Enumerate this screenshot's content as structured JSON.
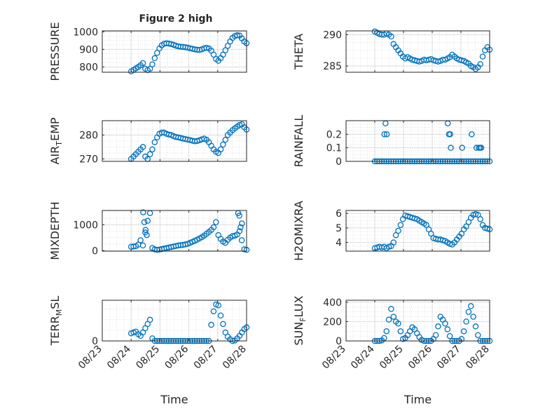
{
  "figure_title": "Figure 2 high",
  "colors": {
    "marker": "#0072BD",
    "axes": "#262626",
    "grid": "#DCDCDC",
    "background": "#FFFFFF"
  },
  "chart_data": [
    {
      "type": "scatter",
      "name": "PRESSURE",
      "ylabel": "PRESSURE",
      "xlabel": "",
      "ylim": [
        770,
        1005
      ],
      "yticks": [
        800,
        900,
        1000
      ],
      "xlim": [
        "08/23",
        "08/28"
      ],
      "xtick_labels": [],
      "grid": true,
      "marker": "circle-open",
      "x": [
        "08/24 00:00",
        "08/24 01:58",
        "08/24 03:55",
        "08/24 05:53",
        "08/24 07:50",
        "08/24 09:48",
        "08/24 11:46",
        "08/24 13:43",
        "08/24 15:41",
        "08/24 17:38",
        "08/24 19:36",
        "08/24 21:34",
        "08/24 23:31",
        "08/25 01:29",
        "08/25 03:26",
        "08/25 05:24",
        "08/25 07:22",
        "08/25 09:19",
        "08/25 11:17",
        "08/25 13:14",
        "08/25 15:12",
        "08/25 17:10",
        "08/25 19:07",
        "08/25 21:05",
        "08/25 23:02",
        "08/26 01:00",
        "08/26 02:58",
        "08/26 04:55",
        "08/26 06:53",
        "08/26 08:50",
        "08/26 10:48",
        "08/26 12:46",
        "08/26 14:43",
        "08/26 16:41",
        "08/26 18:38",
        "08/26 20:36",
        "08/26 22:34",
        "08/27 00:31",
        "08/27 02:29",
        "08/27 04:26",
        "08/27 06:24",
        "08/27 08:22",
        "08/27 10:19",
        "08/27 12:17",
        "08/27 14:14",
        "08/27 16:12",
        "08/27 18:10",
        "08/27 20:07",
        "08/27 22:05",
        "08/28 00:00"
      ],
      "y": [
        775,
        783,
        792,
        800,
        810,
        822,
        790,
        782,
        790,
        815,
        850,
        880,
        905,
        923,
        932,
        935,
        933,
        930,
        926,
        921,
        917,
        915,
        914,
        912,
        910,
        906,
        903,
        900,
        898,
        897,
        900,
        906,
        909,
        905,
        893,
        870,
        845,
        835,
        850,
        870,
        895,
        920,
        945,
        965,
        975,
        980,
        978,
        962,
        945,
        935
      ]
    },
    {
      "type": "scatter",
      "name": "THETA",
      "ylabel": "THETA",
      "xlabel": "",
      "ylim": [
        284,
        290.6
      ],
      "yticks": [
        285,
        290
      ],
      "xlim": [
        "08/23",
        "08/28"
      ],
      "xtick_labels": [],
      "grid": true,
      "marker": "circle-open",
      "x": [
        "08/24 00:00",
        "08/24 01:58",
        "08/24 03:55",
        "08/24 05:53",
        "08/24 07:50",
        "08/24 09:48",
        "08/24 11:46",
        "08/24 13:43",
        "08/24 15:41",
        "08/24 17:38",
        "08/24 19:36",
        "08/24 21:34",
        "08/24 23:31",
        "08/25 01:29",
        "08/25 03:26",
        "08/25 05:24",
        "08/25 07:22",
        "08/25 09:19",
        "08/25 11:17",
        "08/25 13:14",
        "08/25 15:12",
        "08/25 17:10",
        "08/25 19:07",
        "08/25 21:05",
        "08/25 23:02",
        "08/26 01:00",
        "08/26 02:58",
        "08/26 04:55",
        "08/26 06:53",
        "08/26 08:50",
        "08/26 10:48",
        "08/26 12:46",
        "08/26 14:43",
        "08/26 16:41",
        "08/26 18:38",
        "08/26 20:36",
        "08/26 22:34",
        "08/27 00:31",
        "08/27 02:29",
        "08/27 04:26",
        "08/27 06:24",
        "08/27 08:22",
        "08/27 10:19",
        "08/27 12:17",
        "08/27 14:14",
        "08/27 16:12",
        "08/27 18:10",
        "08/27 20:07",
        "08/27 22:05",
        "08/28 00:00"
      ],
      "y": [
        290.5,
        290.3,
        290.1,
        290.0,
        290.0,
        290.2,
        290.0,
        289.7,
        288.5,
        288.0,
        287.5,
        287.0,
        286.5,
        286.2,
        286.4,
        286.2,
        286.0,
        285.9,
        285.8,
        285.7,
        285.8,
        286.0,
        285.9,
        286.0,
        286.1,
        285.9,
        285.8,
        285.7,
        285.8,
        286.0,
        286.0,
        286.2,
        286.4,
        286.8,
        286.5,
        286.2,
        286.0,
        285.9,
        285.8,
        285.6,
        285.4,
        285.0,
        284.8,
        284.5,
        284.8,
        285.3,
        286.5,
        287.5,
        288.0,
        287.6
      ]
    },
    {
      "type": "scatter",
      "name": "AIR_TEMP",
      "ylabel": "AIR_TEMP",
      "xlabel": "",
      "ylim": [
        269,
        286
      ],
      "yticks": [
        270,
        280
      ],
      "xlim": [
        "08/23",
        "08/28"
      ],
      "xtick_labels": [],
      "grid": true,
      "marker": "circle-open",
      "x": [
        "08/24 00:00",
        "08/24 01:58",
        "08/24 03:55",
        "08/24 05:53",
        "08/24 07:50",
        "08/24 09:48",
        "08/24 11:46",
        "08/24 13:43",
        "08/24 15:41",
        "08/24 17:38",
        "08/24 19:36",
        "08/24 21:34",
        "08/24 23:31",
        "08/25 01:29",
        "08/25 03:26",
        "08/25 05:24",
        "08/25 07:22",
        "08/25 09:19",
        "08/25 11:17",
        "08/25 13:14",
        "08/25 15:12",
        "08/25 17:10",
        "08/25 19:07",
        "08/25 21:05",
        "08/25 23:02",
        "08/26 01:00",
        "08/26 02:58",
        "08/26 04:55",
        "08/26 06:53",
        "08/26 08:50",
        "08/26 10:48",
        "08/26 12:46",
        "08/26 14:43",
        "08/26 16:41",
        "08/26 18:38",
        "08/26 20:36",
        "08/26 22:34",
        "08/27 00:31",
        "08/27 02:29",
        "08/27 04:26",
        "08/27 06:24",
        "08/27 08:22",
        "08/27 10:19",
        "08/27 12:17",
        "08/27 14:14",
        "08/27 16:12",
        "08/27 18:10",
        "08/27 20:07",
        "08/27 22:05",
        "08/28 00:00"
      ],
      "y": [
        270,
        271,
        272,
        273,
        274,
        275,
        271,
        270,
        272,
        274,
        277,
        279,
        280.5,
        281,
        281,
        280.5,
        280.2,
        280,
        279.5,
        279.2,
        279,
        278.8,
        278.5,
        278.3,
        278.1,
        277.9,
        277.6,
        277.4,
        277.5,
        277.8,
        278.2,
        278.5,
        278,
        277,
        275.5,
        274,
        273,
        272.5,
        274,
        276,
        278,
        280,
        281,
        282,
        282.8,
        283.5,
        284.2,
        284.5,
        283.2,
        282.3
      ]
    },
    {
      "type": "scatter",
      "name": "RAINFALL",
      "ylabel": "RAINFALL",
      "xlabel": "",
      "ylim": [
        0,
        0.3
      ],
      "yticks": [
        0,
        0.1,
        0.2
      ],
      "xlim": [
        "08/23",
        "08/28"
      ],
      "xtick_labels": [],
      "grid": true,
      "marker": "circle-open",
      "x": [
        "08/24 00:00",
        "08/24 01:58",
        "08/24 03:55",
        "08/24 05:53",
        "08/24 07:50",
        "08/24 09:48",
        "08/24 11:46",
        "08/24 13:43",
        "08/24 15:41",
        "08/24 17:38",
        "08/24 19:36",
        "08/24 21:34",
        "08/24 23:31",
        "08/25 01:29",
        "08/25 03:26",
        "08/25 05:24",
        "08/25 07:22",
        "08/25 09:19",
        "08/25 11:17",
        "08/25 13:14",
        "08/25 15:12",
        "08/25 17:10",
        "08/25 19:07",
        "08/25 21:05",
        "08/25 23:02",
        "08/26 01:00",
        "08/26 02:58",
        "08/26 04:55",
        "08/26 06:53",
        "08/26 08:50",
        "08/26 10:48",
        "08/26 12:46",
        "08/26 14:43",
        "08/26 16:41",
        "08/26 18:38",
        "08/26 20:36",
        "08/26 22:34",
        "08/27 00:31",
        "08/27 02:29",
        "08/27 04:26",
        "08/27 06:24",
        "08/27 08:22",
        "08/27 10:19",
        "08/27 12:17",
        "08/27 14:14",
        "08/27 16:12",
        "08/27 18:10",
        "08/27 20:07",
        "08/27 22:05",
        "08/28 00:00",
        "08/24 08:00",
        "08/24 09:00",
        "08/24 10:00",
        "08/26 13:00",
        "08/26 14:00",
        "08/26 15:00",
        "08/26 15:30",
        "08/27 01:00",
        "08/27 09:00",
        "08/27 13:00",
        "08/27 15:00",
        "08/27 16:00",
        "08/27 17:00"
      ],
      "y": [
        0,
        0,
        0,
        0,
        0,
        0,
        0,
        0,
        0,
        0,
        0,
        0,
        0,
        0,
        0,
        0,
        0,
        0,
        0,
        0,
        0,
        0,
        0,
        0,
        0,
        0,
        0,
        0,
        0,
        0,
        0,
        0,
        0,
        0,
        0,
        0,
        0,
        0,
        0,
        0,
        0,
        0,
        0,
        0,
        0,
        0,
        0,
        0,
        0,
        0,
        0.2,
        0.28,
        0.2,
        0.28,
        0.2,
        0.2,
        0.1,
        0.1,
        0.2,
        0.1,
        0.1,
        0.1,
        0.1
      ]
    },
    {
      "type": "scatter",
      "name": "MIXDEPTH",
      "ylabel": "MIXDEPTH",
      "xlabel": "",
      "ylim": [
        -20,
        1550
      ],
      "yticks": [
        0,
        1000
      ],
      "xlim": [
        "08/23",
        "08/28"
      ],
      "xtick_labels": [],
      "grid": true,
      "marker": "circle-open",
      "x": [
        "08/24 00:00",
        "08/24 01:58",
        "08/24 03:55",
        "08/24 05:53",
        "08/24 07:50",
        "08/24 09:48",
        "08/24 11:46",
        "08/24 13:43",
        "08/24 15:41",
        "08/24 17:38",
        "08/24 19:36",
        "08/24 21:34",
        "08/24 23:31",
        "08/25 01:29",
        "08/25 03:26",
        "08/25 05:24",
        "08/25 07:22",
        "08/25 09:19",
        "08/25 11:17",
        "08/25 13:14",
        "08/25 15:12",
        "08/25 17:10",
        "08/25 19:07",
        "08/25 21:05",
        "08/25 23:02",
        "08/26 01:00",
        "08/26 02:58",
        "08/26 04:55",
        "08/26 06:53",
        "08/26 08:50",
        "08/26 10:48",
        "08/26 12:46",
        "08/26 14:43",
        "08/26 16:41",
        "08/26 18:38",
        "08/26 20:36",
        "08/26 22:34",
        "08/27 00:31",
        "08/27 02:29",
        "08/27 04:26",
        "08/27 06:24",
        "08/27 08:22",
        "08/27 10:19",
        "08/27 12:17",
        "08/27 14:14",
        "08/27 16:12",
        "08/27 18:10",
        "08/27 20:07",
        "08/27 22:05",
        "08/28 00:00",
        "08/24 10:00",
        "08/24 11:00",
        "08/24 12:00",
        "08/24 13:00",
        "08/27 17:00",
        "08/27 18:00",
        "08/27 19:00",
        "08/27 20:00"
      ],
      "y": [
        150,
        160,
        170,
        230,
        400,
        200,
        700,
        1150,
        1450,
        100,
        50,
        30,
        40,
        60,
        80,
        100,
        120,
        140,
        160,
        180,
        200,
        210,
        220,
        240,
        260,
        300,
        340,
        380,
        420,
        470,
        520,
        580,
        650,
        720,
        800,
        900,
        1100,
        600,
        450,
        350,
        300,
        420,
        500,
        560,
        580,
        620,
        750,
        1050,
        50,
        30,
        1480,
        1100,
        800,
        600,
        1450,
        1350,
        900,
        400
      ]
    },
    {
      "type": "scatter",
      "name": "H2OMIXRA",
      "ylabel": "H2OMIXRA",
      "xlabel": "",
      "ylim": [
        3.4,
        6.2
      ],
      "yticks": [
        4,
        5,
        6
      ],
      "xlim": [
        "08/23",
        "08/28"
      ],
      "xtick_labels": [],
      "grid": true,
      "marker": "circle-open",
      "x": [
        "08/24 00:00",
        "08/24 01:58",
        "08/24 03:55",
        "08/24 05:53",
        "08/24 07:50",
        "08/24 09:48",
        "08/24 11:46",
        "08/24 13:43",
        "08/24 15:41",
        "08/24 17:38",
        "08/24 19:36",
        "08/24 21:34",
        "08/24 23:31",
        "08/25 01:29",
        "08/25 03:26",
        "08/25 05:24",
        "08/25 07:22",
        "08/25 09:19",
        "08/25 11:17",
        "08/25 13:14",
        "08/25 15:12",
        "08/25 17:10",
        "08/25 19:07",
        "08/25 21:05",
        "08/25 23:02",
        "08/26 01:00",
        "08/26 02:58",
        "08/26 04:55",
        "08/26 06:53",
        "08/26 08:50",
        "08/26 10:48",
        "08/26 12:46",
        "08/26 14:43",
        "08/26 16:41",
        "08/26 18:38",
        "08/26 20:36",
        "08/26 22:34",
        "08/27 00:31",
        "08/27 02:29",
        "08/27 04:26",
        "08/27 06:24",
        "08/27 08:22",
        "08/27 10:19",
        "08/27 12:17",
        "08/27 14:14",
        "08/27 16:12",
        "08/27 18:10",
        "08/27 20:07",
        "08/27 22:05",
        "08/28 00:00"
      ],
      "y": [
        3.6,
        3.65,
        3.7,
        3.65,
        3.7,
        3.6,
        3.7,
        3.75,
        4.0,
        4.5,
        4.8,
        5.2,
        5.6,
        5.85,
        5.8,
        5.75,
        5.7,
        5.65,
        5.6,
        5.5,
        5.4,
        5.3,
        5.2,
        4.9,
        4.6,
        4.3,
        4.25,
        4.2,
        4.2,
        4.15,
        4.1,
        4.0,
        3.9,
        3.85,
        4.0,
        4.2,
        4.4,
        4.6,
        4.9,
        5.1,
        5.4,
        5.7,
        5.9,
        5.95,
        5.9,
        5.6,
        5.2,
        5.0,
        4.95,
        4.9
      ]
    },
    {
      "type": "scatter",
      "name": "TERR_MSL",
      "ylabel": "TERR_MSL",
      "xlabel": "Time",
      "ylim": [
        0,
        480
      ],
      "yticks": [
        0,
        500
      ],
      "xlim": [
        "08/23",
        "08/28"
      ],
      "xtick_labels": [
        "08/23",
        "08/24",
        "08/25",
        "08/26",
        "08/27",
        "08/28"
      ],
      "grid": true,
      "marker": "circle-open",
      "x": [
        "08/24 00:00",
        "08/24 01:58",
        "08/24 03:55",
        "08/24 05:53",
        "08/24 07:50",
        "08/24 09:48",
        "08/24 11:46",
        "08/24 13:43",
        "08/24 15:41",
        "08/24 17:38",
        "08/24 19:36",
        "08/24 21:34",
        "08/24 23:31",
        "08/25 01:29",
        "08/25 03:26",
        "08/25 05:24",
        "08/25 07:22",
        "08/25 09:19",
        "08/25 11:17",
        "08/25 13:14",
        "08/25 15:12",
        "08/25 17:10",
        "08/25 19:07",
        "08/25 21:05",
        "08/25 23:02",
        "08/26 01:00",
        "08/26 02:58",
        "08/26 04:55",
        "08/26 06:53",
        "08/26 08:50",
        "08/26 10:48",
        "08/26 12:46",
        "08/26 14:43",
        "08/26 16:41",
        "08/26 18:38",
        "08/26 20:36",
        "08/26 22:34",
        "08/27 00:31",
        "08/27 02:29",
        "08/27 04:26",
        "08/27 06:24",
        "08/27 08:22",
        "08/27 10:19",
        "08/27 12:17",
        "08/27 14:14",
        "08/27 16:12",
        "08/27 18:10",
        "08/27 20:07",
        "08/27 22:05",
        "08/28 00:00"
      ],
      "y": [
        90,
        100,
        110,
        80,
        60,
        100,
        150,
        200,
        250,
        30,
        0,
        0,
        0,
        0,
        0,
        0,
        0,
        0,
        0,
        0,
        0,
        0,
        0,
        0,
        0,
        0,
        0,
        0,
        0,
        0,
        0,
        0,
        0,
        0,
        190,
        350,
        430,
        420,
        300,
        200,
        100,
        50,
        20,
        0,
        5,
        30,
        60,
        100,
        140,
        160
      ]
    },
    {
      "type": "scatter",
      "name": "SUN_FLUX",
      "ylabel": "SUN_FLUX",
      "xlabel": "Time",
      "ylim": [
        0,
        420
      ],
      "yticks": [
        0,
        200,
        400
      ],
      "xlim": [
        "08/23",
        "08/28"
      ],
      "xtick_labels": [
        "08/23",
        "08/24",
        "08/25",
        "08/26",
        "08/27",
        "08/28"
      ],
      "grid": true,
      "marker": "circle-open",
      "x": [
        "08/24 00:00",
        "08/24 01:58",
        "08/24 03:55",
        "08/24 05:53",
        "08/24 07:50",
        "08/24 09:48",
        "08/24 11:46",
        "08/24 13:43",
        "08/24 15:41",
        "08/24 17:38",
        "08/24 19:36",
        "08/24 21:34",
        "08/24 23:31",
        "08/25 01:29",
        "08/25 03:26",
        "08/25 05:24",
        "08/25 07:22",
        "08/25 09:19",
        "08/25 11:17",
        "08/25 13:14",
        "08/25 15:12",
        "08/25 17:10",
        "08/25 19:07",
        "08/25 21:05",
        "08/25 23:02",
        "08/26 01:00",
        "08/26 02:58",
        "08/26 04:55",
        "08/26 06:53",
        "08/26 08:50",
        "08/26 10:48",
        "08/26 12:46",
        "08/26 14:43",
        "08/26 16:41",
        "08/26 18:38",
        "08/26 20:36",
        "08/26 22:34",
        "08/27 00:31",
        "08/27 02:29",
        "08/27 04:26",
        "08/27 06:24",
        "08/27 08:22",
        "08/27 10:19",
        "08/27 12:17",
        "08/27 14:14",
        "08/27 16:12",
        "08/27 18:10",
        "08/27 20:07",
        "08/27 22:05",
        "08/28 00:00"
      ],
      "y": [
        0,
        0,
        0,
        5,
        30,
        100,
        220,
        330,
        250,
        200,
        180,
        100,
        20,
        30,
        60,
        100,
        140,
        120,
        80,
        40,
        10,
        0,
        0,
        0,
        0,
        20,
        60,
        150,
        250,
        220,
        180,
        120,
        50,
        0,
        0,
        0,
        0,
        20,
        100,
        200,
        300,
        360,
        250,
        150,
        60,
        0,
        0,
        0,
        0,
        0
      ]
    }
  ]
}
